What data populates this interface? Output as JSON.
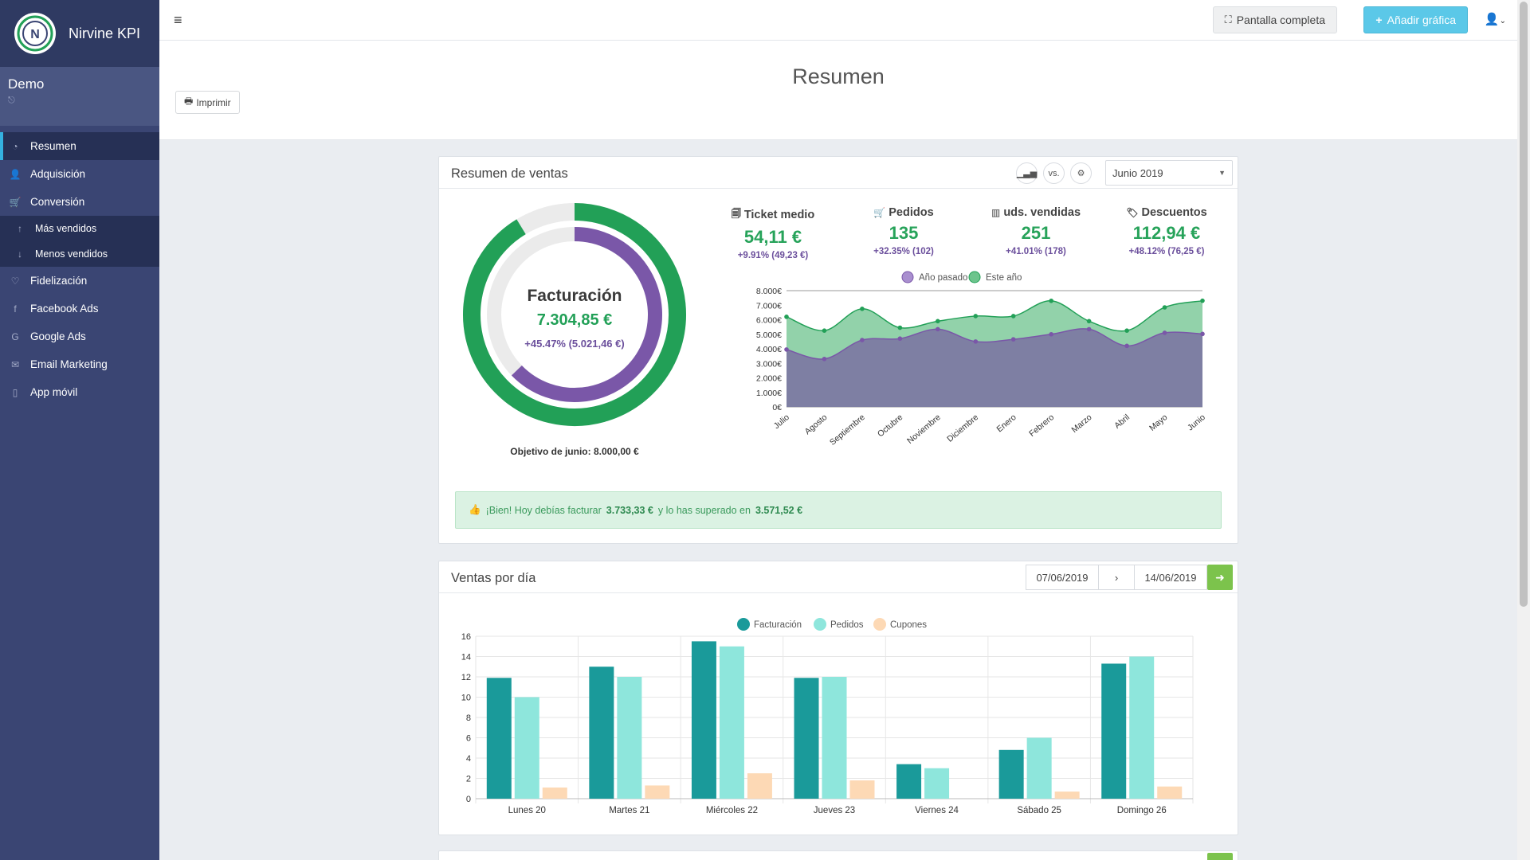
{
  "brand": {
    "name": "Nirvine KPI",
    "logo_letter": "N"
  },
  "user": {
    "name": "Demo"
  },
  "nav": {
    "items": [
      {
        "label": "Resumen",
        "icon": "dashboard-icon",
        "glyph": "◔"
      },
      {
        "label": "Adquisición",
        "icon": "user-icon",
        "glyph": "👤"
      },
      {
        "label": "Conversión",
        "icon": "cart-icon",
        "glyph": "🛒"
      }
    ],
    "sub_items": [
      {
        "label": "Más vendidos",
        "icon": "arrow-up-icon",
        "glyph": "↑"
      },
      {
        "label": "Menos vendidos",
        "icon": "arrow-down-icon",
        "glyph": "↓"
      }
    ],
    "more_items": [
      {
        "label": "Fidelización",
        "icon": "heart-icon",
        "glyph": "♡"
      },
      {
        "label": "Facebook Ads",
        "icon": "facebook-icon",
        "glyph": "f"
      },
      {
        "label": "Google Ads",
        "icon": "google-icon",
        "glyph": "G"
      },
      {
        "label": "Email Marketing",
        "icon": "envelope-icon",
        "glyph": "✉"
      },
      {
        "label": "App móvil",
        "icon": "mobile-icon",
        "glyph": "▯"
      }
    ]
  },
  "topbar": {
    "fullscreen_label": "Pantalla completa",
    "add_chart_label": "Añadir gráfica"
  },
  "page": {
    "title": "Resumen",
    "print_label": "Imprimir"
  },
  "sales_panel": {
    "title": "Resumen de ventas",
    "vs_label": "vs.",
    "month": "Junio 2019",
    "donut": {
      "label": "Facturación",
      "value": "7.304,85 €",
      "change": "+45.47% (5.021,46 €)",
      "target_text": "Objetivo de junio: 8.000,00 €",
      "current": 7304.85,
      "previous": 5021.46,
      "target": 8000
    },
    "kpis": [
      {
        "label": "Ticket medio",
        "value": "54,11 €",
        "change": "+9.91% (49,23 €)",
        "icon": "ticket-icon",
        "glyph": "🗐"
      },
      {
        "label": "Pedidos",
        "value": "135",
        "change": "+32.35% (102)",
        "icon": "cart-icon",
        "glyph": "🛒"
      },
      {
        "label": "uds. vendidas",
        "value": "251",
        "change": "+41.01% (178)",
        "icon": "bar-chart-icon",
        "glyph": "▥"
      },
      {
        "label": "Descuentos",
        "value": "112,94 €",
        "change": "+48.12% (76,25 €)",
        "icon": "tag-icon",
        "glyph": "🏷"
      }
    ],
    "alert": {
      "prefix": "¡Bien! Hoy debías facturar",
      "amount1": "3.733,33 €",
      "middle": "y lo has superado en",
      "amount2": "3.571,52 €"
    }
  },
  "day_panel": {
    "title": "Ventas por día",
    "date_from": "07/06/2019",
    "date_to": "14/06/2019",
    "next": "›"
  },
  "colors": {
    "green": "#22a057",
    "purple": "#7a57a8",
    "teal": "#1a9a9a",
    "light_teal": "#8ee6dc",
    "peach": "#fdd9b5",
    "area_green": "#7fca9b",
    "area_purple": "#7e7fa3"
  },
  "chart_data": [
    {
      "type": "area",
      "title": "",
      "categories": [
        "Julio",
        "Agosto",
        "Septiembre",
        "Octubre",
        "Noviembre",
        "Diciembre",
        "Enero",
        "Febrero",
        "Marzo",
        "Abril",
        "Mayo",
        "Junio"
      ],
      "series": [
        {
          "name": "Año pasado",
          "values": [
            3950,
            3300,
            4600,
            4700,
            5350,
            4500,
            4650,
            5000,
            5350,
            4200,
            5100,
            5021.46
          ]
        },
        {
          "name": "Este año",
          "values": [
            6200,
            5250,
            6750,
            5450,
            5900,
            6250,
            6250,
            7300,
            5900,
            5250,
            6850,
            7304.85
          ]
        }
      ],
      "ylim": [
        0,
        8000
      ],
      "yticks": [
        "0€",
        "1.000€",
        "2.000€",
        "3.000€",
        "4.000€",
        "5.000€",
        "6.000€",
        "7.000€",
        "8.000€"
      ],
      "legend": "top"
    },
    {
      "type": "bar",
      "title": "",
      "categories": [
        "Lunes 20",
        "Martes 21",
        "Miércoles 22",
        "Jueves 23",
        "Viernes 24",
        "Sábado 25",
        "Domingo 26"
      ],
      "series": [
        {
          "name": "Facturación",
          "values": [
            11.9,
            13,
            15.5,
            11.9,
            3.4,
            4.8,
            13.3
          ]
        },
        {
          "name": "Pedidos",
          "values": [
            10,
            12,
            15,
            12,
            3,
            6,
            14
          ]
        },
        {
          "name": "Cupones",
          "values": [
            1.1,
            1.3,
            2.5,
            1.8,
            0,
            0.7,
            1.2
          ]
        }
      ],
      "ylim": [
        0,
        16
      ],
      "yticks": [
        "0",
        "2",
        "4",
        "6",
        "8",
        "10",
        "12",
        "14",
        "16"
      ],
      "legend": "top"
    }
  ]
}
